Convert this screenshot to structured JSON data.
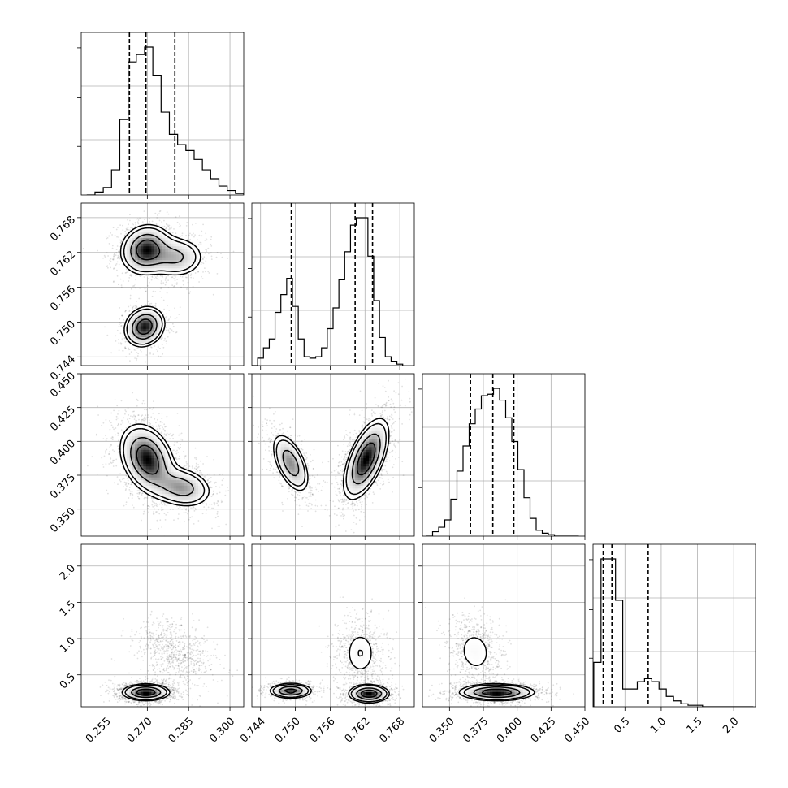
{
  "chart_data": {
    "type": "corner",
    "grid": true,
    "colors": {
      "line": "#000000",
      "grid": "#b0b0b0",
      "fill_low": "#ffffff",
      "fill_high": "#000000"
    },
    "parameters": [
      {
        "id": "p0",
        "range": [
          0.246,
          0.305
        ],
        "ticks": [
          0.255,
          0.27,
          0.285,
          0.3
        ],
        "tick_labels": [
          "0.255",
          "0.270",
          "0.285",
          "0.300"
        ]
      },
      {
        "id": "p1",
        "range": [
          0.7425,
          0.7705
        ],
        "ticks": [
          0.744,
          0.75,
          0.756,
          0.762,
          0.768
        ],
        "tick_labels": [
          "0.744",
          "0.750",
          "0.756",
          "0.762",
          "0.768"
        ]
      },
      {
        "id": "p2",
        "range": [
          0.33,
          0.45
        ],
        "ticks": [
          0.35,
          0.375,
          0.4,
          0.425,
          0.45
        ],
        "tick_labels": [
          "0.350",
          "0.375",
          "0.400",
          "0.425",
          "0.450"
        ]
      },
      {
        "id": "p3",
        "range": [
          0.06,
          2.3
        ],
        "ticks": [
          0.5,
          1.0,
          1.5,
          2.0
        ],
        "tick_labels": [
          "0.5",
          "1.0",
          "1.5",
          "2.0"
        ]
      }
    ],
    "histograms": [
      {
        "param": "p0",
        "bin_edges": [
          0.248,
          0.251,
          0.254,
          0.257,
          0.26,
          0.263,
          0.266,
          0.269,
          0.272,
          0.275,
          0.278,
          0.281,
          0.284,
          0.287,
          0.29,
          0.293,
          0.296,
          0.299,
          0.302,
          0.305
        ],
        "counts": [
          0,
          0.02,
          0.05,
          0.17,
          0.51,
          0.9,
          0.95,
          1.0,
          0.81,
          0.56,
          0.41,
          0.34,
          0.3,
          0.24,
          0.17,
          0.11,
          0.06,
          0.03,
          0.01
        ],
        "quantiles": [
          0.2635,
          0.2695,
          0.28
        ]
      },
      {
        "param": "p1",
        "bin_edges": [
          0.7425,
          0.7435,
          0.7445,
          0.7455,
          0.7465,
          0.7475,
          0.7485,
          0.7495,
          0.7505,
          0.7515,
          0.7525,
          0.7535,
          0.7545,
          0.7555,
          0.7565,
          0.7575,
          0.7585,
          0.7595,
          0.7605,
          0.7615,
          0.7625,
          0.7635,
          0.7645,
          0.7655,
          0.7665,
          0.7675,
          0.7685
        ],
        "counts": [
          0,
          0.05,
          0.12,
          0.18,
          0.36,
          0.48,
          0.59,
          0.4,
          0.18,
          0.06,
          0.05,
          0.06,
          0.12,
          0.25,
          0.39,
          0.58,
          0.77,
          0.95,
          1.0,
          1.0,
          0.74,
          0.44,
          0.19,
          0.06,
          0.03,
          0.01
        ],
        "quantiles": [
          0.7493,
          0.7603,
          0.7633
        ]
      },
      {
        "param": "p2",
        "bin_edges": [
          0.333,
          0.3375,
          0.342,
          0.3465,
          0.351,
          0.3555,
          0.36,
          0.3645,
          0.369,
          0.3735,
          0.378,
          0.3825,
          0.387,
          0.3915,
          0.396,
          0.4005,
          0.405,
          0.4095,
          0.414,
          0.4185,
          0.423,
          0.4275,
          0.432,
          0.4365,
          0.441,
          0.4455
        ],
        "counts": [
          0,
          0.03,
          0.06,
          0.11,
          0.25,
          0.44,
          0.61,
          0.76,
          0.86,
          0.95,
          0.96,
          1.0,
          0.92,
          0.8,
          0.64,
          0.45,
          0.26,
          0.12,
          0.04,
          0.02,
          0.01,
          0,
          0,
          0,
          0
        ],
        "quantiles": [
          0.3655,
          0.382,
          0.3975
        ]
      },
      {
        "param": "p3",
        "bin_edges": [
          0.07,
          0.17,
          0.27,
          0.37,
          0.47,
          0.57,
          0.67,
          0.77,
          0.87,
          0.97,
          1.07,
          1.17,
          1.27,
          1.37,
          1.47,
          1.57,
          1.67,
          1.77,
          1.87,
          1.97,
          2.07,
          2.17,
          2.27
        ],
        "counts": [
          0.3,
          1.0,
          1.0,
          0.72,
          0.12,
          0.12,
          0.17,
          0.19,
          0.17,
          0.12,
          0.07,
          0.04,
          0.02,
          0.01,
          0.01,
          0,
          0,
          0,
          0,
          0,
          0,
          0
        ],
        "quantiles": [
          0.2,
          0.32,
          0.82
        ]
      }
    ],
    "joint": [
      {
        "x": "p0",
        "y": "p1",
        "clusters": [
          {
            "center": [
              0.2695,
              0.7625
            ],
            "sd": [
              0.0045,
              0.0021
            ],
            "rho": 0.1,
            "weight": 0.46
          },
          {
            "center": [
              0.2805,
              0.7612
            ],
            "sd": [
              0.0052,
              0.0018
            ],
            "rho": 0.0,
            "weight": 0.24
          },
          {
            "center": [
              0.269,
              0.7492
            ],
            "sd": [
              0.0036,
              0.0017
            ],
            "rho": 0.15,
            "weight": 0.3
          }
        ]
      },
      {
        "x": "p0",
        "y": "p2",
        "clusters": [
          {
            "center": [
              0.27,
              0.387
            ],
            "sd": [
              0.0048,
              0.0125
            ],
            "rho": -0.3,
            "weight": 0.7
          },
          {
            "center": [
              0.2825,
              0.366
            ],
            "sd": [
              0.0055,
              0.0075
            ],
            "rho": -0.2,
            "weight": 0.3
          }
        ]
      },
      {
        "x": "p1",
        "y": "p2",
        "clusters": [
          {
            "center": [
              0.7492,
              0.384
            ],
            "sd": [
              0.0016,
              0.011
            ],
            "rho": -0.55,
            "weight": 0.3
          },
          {
            "center": [
              0.7622,
              0.387
            ],
            "sd": [
              0.0019,
              0.0145
            ],
            "rho": 0.6,
            "weight": 0.7
          }
        ]
      },
      {
        "x": "p0",
        "y": "p3",
        "clusters": [
          {
            "center": [
              0.2805,
              0.8
            ],
            "sd": [
              0.0058,
              0.19
            ],
            "rho": -0.35,
            "weight": 0.3
          },
          {
            "center": [
              0.2695,
              0.26
            ],
            "sd": [
              0.0042,
              0.055
            ],
            "rho": 0.0,
            "weight": 0.7
          }
        ]
      },
      {
        "x": "p1",
        "y": "p3",
        "clusters": [
          {
            "center": [
              0.7612,
              0.8
            ],
            "sd": [
              0.0018,
              0.21
            ],
            "rho": 0.0,
            "weight": 0.3
          },
          {
            "center": [
              0.7492,
              0.28
            ],
            "sd": [
              0.0018,
              0.05
            ],
            "rho": 0.0,
            "weight": 0.3
          },
          {
            "center": [
              0.7627,
              0.24
            ],
            "sd": [
              0.0017,
              0.06
            ],
            "rho": 0.0,
            "weight": 0.4
          }
        ]
      },
      {
        "x": "p2",
        "y": "p3",
        "clusters": [
          {
            "center": [
              0.369,
              0.82
            ],
            "sd": [
              0.0085,
              0.2
            ],
            "rho": -0.1,
            "weight": 0.3
          },
          {
            "center": [
              0.385,
              0.26
            ],
            "sd": [
              0.0135,
              0.055
            ],
            "rho": 0.0,
            "weight": 0.7
          }
        ]
      }
    ]
  }
}
